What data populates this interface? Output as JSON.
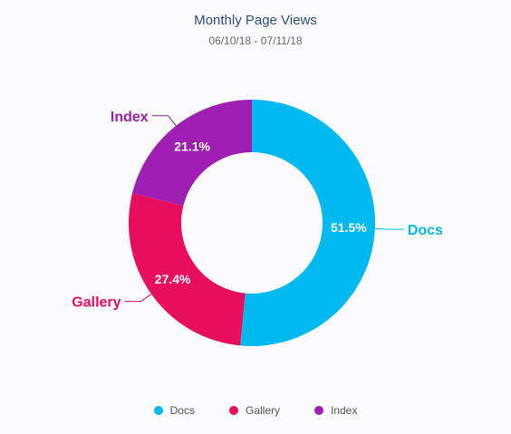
{
  "chart_data": {
    "type": "pie",
    "variant": "donut",
    "title": "Monthly Page Views",
    "subtitle": "06/10/18 - 07/11/18",
    "slices": [
      {
        "name": "Docs",
        "value": 51.5,
        "label": "51.5%",
        "color": "#00b9ef"
      },
      {
        "name": "Gallery",
        "value": 27.4,
        "label": "27.4%",
        "color": "#e80e5e"
      },
      {
        "name": "Index",
        "value": 21.1,
        "label": "21.1%",
        "color": "#9e1fb2"
      }
    ],
    "legend_position": "bottom"
  }
}
